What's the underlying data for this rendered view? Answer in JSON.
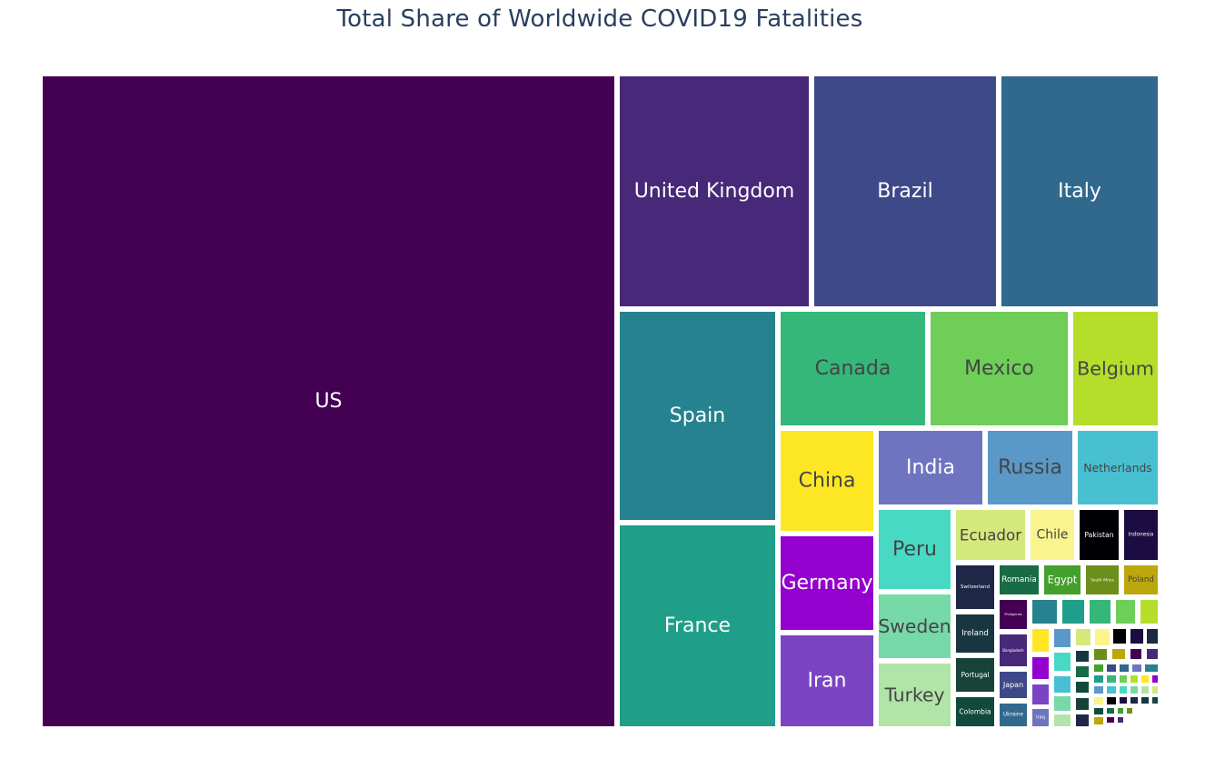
{
  "chart_data": {
    "type": "treemap",
    "title": "Total Share of Worldwide COVID19 Fatalities",
    "tiles": [
      {
        "label": "US",
        "value": 1000,
        "color": "#440154"
      },
      {
        "label": "United Kingdom",
        "value": 235,
        "color": "#482878"
      },
      {
        "label": "Brazil",
        "value": 235,
        "color": "#3e4989"
      },
      {
        "label": "Italy",
        "value": 195,
        "color": "#31688e"
      },
      {
        "label": "Spain",
        "value": 175,
        "color": "#26828e"
      },
      {
        "label": "France",
        "value": 165,
        "color": "#1f9e89"
      },
      {
        "label": "Canada",
        "value": 60,
        "color": "#35b779"
      },
      {
        "label": "Mexico",
        "value": 56,
        "color": "#6ece58"
      },
      {
        "label": "Belgium",
        "value": 36,
        "color": "#b5de2b"
      },
      {
        "label": "China",
        "value": 28,
        "color": "#fde725"
      },
      {
        "label": "Germany",
        "value": 26,
        "color": "#9400cd"
      },
      {
        "label": "Iran",
        "value": 25,
        "color": "#7b44c3"
      },
      {
        "label": "India",
        "value": 25,
        "color": "#6f74c0"
      },
      {
        "label": "Russia",
        "value": 21,
        "color": "#5a98c8"
      },
      {
        "label": "Netherlands",
        "value": 20,
        "color": "#48c0d2"
      },
      {
        "label": "Peru",
        "value": 15,
        "color": "#48d9c4"
      },
      {
        "label": "Sweden",
        "value": 13,
        "color": "#78d9a8"
      },
      {
        "label": "Turkey",
        "value": 13,
        "color": "#b1e4a7"
      },
      {
        "label": "Ecuador",
        "value": 10,
        "color": "#d5e87c"
      },
      {
        "label": "Chile",
        "value": 7,
        "color": "#fbf48c"
      },
      {
        "label": "Pakistan",
        "value": 5,
        "color": "#000004"
      },
      {
        "label": "Indonesia",
        "value": 5,
        "color": "#1b0c41"
      },
      {
        "label": "Switzerland",
        "value": 4,
        "color": "#1e2846"
      },
      {
        "label": "Ireland",
        "value": 4,
        "color": "#183641"
      },
      {
        "label": "Portugal",
        "value": 3.5,
        "color": "#174339"
      },
      {
        "label": "Colombia",
        "value": 3.5,
        "color": "#0f4a3c"
      },
      {
        "label": "Romania",
        "value": 3,
        "color": "#196b45"
      },
      {
        "label": "Egypt",
        "value": 3,
        "color": "#44a02d"
      },
      {
        "label": "South Africa",
        "value": 2.6,
        "color": "#6c8e1a"
      },
      {
        "label": "Poland",
        "value": 2.6,
        "color": "#bca70d"
      },
      {
        "label": "Philippines",
        "value": 2.5,
        "color": "#440154"
      },
      {
        "label": "Bangladesh",
        "value": 2.5,
        "color": "#482878"
      },
      {
        "label": "Japan",
        "value": 2.5,
        "color": "#3e4989"
      },
      {
        "label": "Ukraine",
        "value": 2.5,
        "color": "#31688e"
      },
      {
        "label": "Iraq",
        "value": 1.0,
        "color": "#6f74c0"
      }
    ]
  }
}
